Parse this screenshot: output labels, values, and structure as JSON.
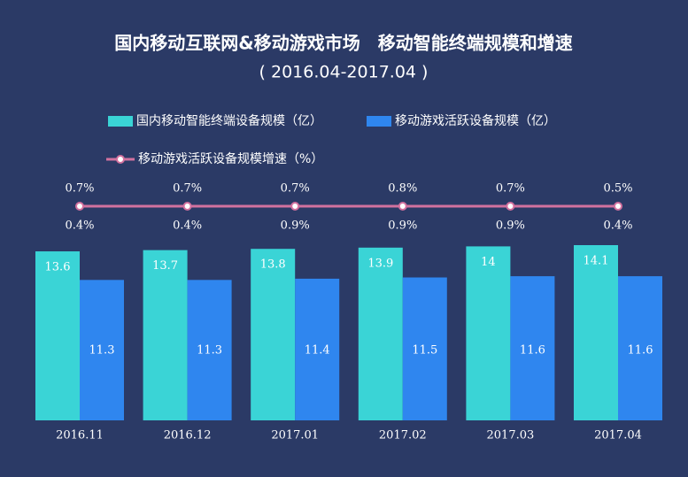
{
  "chart_data": {
    "type": "bar",
    "title": "国内移动互联网&移动游戏市场　移动智能终端规模和增速",
    "subtitle": "(  2016.04-2017.04  )",
    "categories": [
      "2016.11",
      "2016.12",
      "2017.01",
      "2017.02",
      "2017.03",
      "2017.04"
    ],
    "series": [
      {
        "name": "国内移动智能终端设备规模（亿）",
        "color": "#3ad4d6",
        "values": [
          13.6,
          13.7,
          13.8,
          13.9,
          14.0,
          14.1
        ]
      },
      {
        "name": "移动游戏活跃设备规模（亿）",
        "color": "#2f86ef",
        "values": [
          11.3,
          11.3,
          11.4,
          11.5,
          11.6,
          11.6
        ]
      }
    ],
    "rate": {
      "name": "移动游戏活跃设备规模增速（%）",
      "color": "#d2719f",
      "values": [
        0.7,
        0.7,
        0.7,
        0.8,
        0.7,
        0.5
      ],
      "value_labels": [
        "0.7%",
        "0.7%",
        "0.7%",
        "0.8%",
        "0.7%",
        "0.5%"
      ],
      "lower_values": [
        0.4,
        0.4,
        0.9,
        0.9,
        0.9,
        0.4
      ],
      "lower_value_labels": [
        "0.4%",
        "0.4%",
        "0.9%",
        "0.9%",
        "0.9%",
        "0.4%"
      ]
    }
  }
}
